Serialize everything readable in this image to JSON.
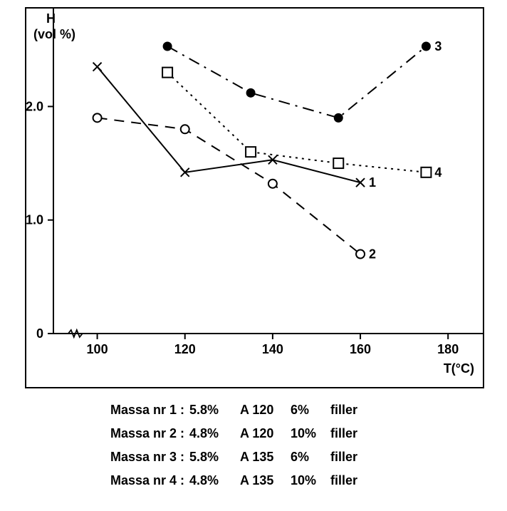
{
  "chart": {
    "type": "line",
    "y_label_top": "H",
    "y_label_unit": "(vol %)",
    "x_label": "T(°C)",
    "xlim": [
      90,
      185
    ],
    "ylim": [
      0,
      2.8
    ],
    "x_ticks": [
      100,
      120,
      140,
      160,
      180
    ],
    "y_ticks": [
      0,
      1.0,
      2.0
    ],
    "y_tick_labels": [
      "0",
      "1.0",
      "2.0"
    ],
    "axis_color": "#000000",
    "axis_width": 2,
    "tick_fontsize": 18,
    "label_fontsize": 18,
    "background_color": "#ffffff",
    "axis_break_x": 95,
    "series": [
      {
        "id": "1",
        "end_label": "1",
        "marker": "x",
        "line_dash": "solid",
        "color": "#000000",
        "line_width": 2,
        "marker_size": 6,
        "points": [
          {
            "x": 100,
            "y": 2.35
          },
          {
            "x": 120,
            "y": 1.42
          },
          {
            "x": 140,
            "y": 1.53
          },
          {
            "x": 160,
            "y": 1.33
          }
        ]
      },
      {
        "id": "2",
        "end_label": "2",
        "marker": "open-circle",
        "line_dash": "dash",
        "color": "#000000",
        "line_width": 2,
        "marker_size": 6,
        "points": [
          {
            "x": 100,
            "y": 1.9
          },
          {
            "x": 120,
            "y": 1.8
          },
          {
            "x": 140,
            "y": 1.32
          },
          {
            "x": 160,
            "y": 0.7
          }
        ]
      },
      {
        "id": "3",
        "end_label": "3",
        "marker": "filled-circle",
        "line_dash": "dash-dot",
        "color": "#000000",
        "line_width": 2,
        "marker_size": 6,
        "points": [
          {
            "x": 116,
            "y": 2.53
          },
          {
            "x": 135,
            "y": 2.12
          },
          {
            "x": 155,
            "y": 1.9
          },
          {
            "x": 175,
            "y": 2.53
          }
        ]
      },
      {
        "id": "4",
        "end_label": "4",
        "marker": "open-square",
        "line_dash": "dot",
        "color": "#000000",
        "line_width": 2,
        "marker_size": 7,
        "points": [
          {
            "x": 116,
            "y": 2.3
          },
          {
            "x": 135,
            "y": 1.6
          },
          {
            "x": 155,
            "y": 1.5
          },
          {
            "x": 175,
            "y": 1.42
          }
        ]
      }
    ]
  },
  "legend": {
    "rows": [
      {
        "name": "Massa nr 1 :",
        "pct": "5.8%",
        "grade": "A 120",
        "filler_pct": "6%",
        "filler_word": "filler"
      },
      {
        "name": "Massa nr 2 :",
        "pct": "4.8%",
        "grade": "A 120",
        "filler_pct": "10%",
        "filler_word": "filler"
      },
      {
        "name": "Massa nr 3 :",
        "pct": "5.8%",
        "grade": "A 135",
        "filler_pct": "6%",
        "filler_word": "filler"
      },
      {
        "name": "Massa nr 4 :",
        "pct": "4.8%",
        "grade": "A 135",
        "filler_pct": "10%",
        "filler_word": "filler"
      }
    ],
    "fontsize": 18,
    "fontweight": 600,
    "color": "#000000"
  }
}
